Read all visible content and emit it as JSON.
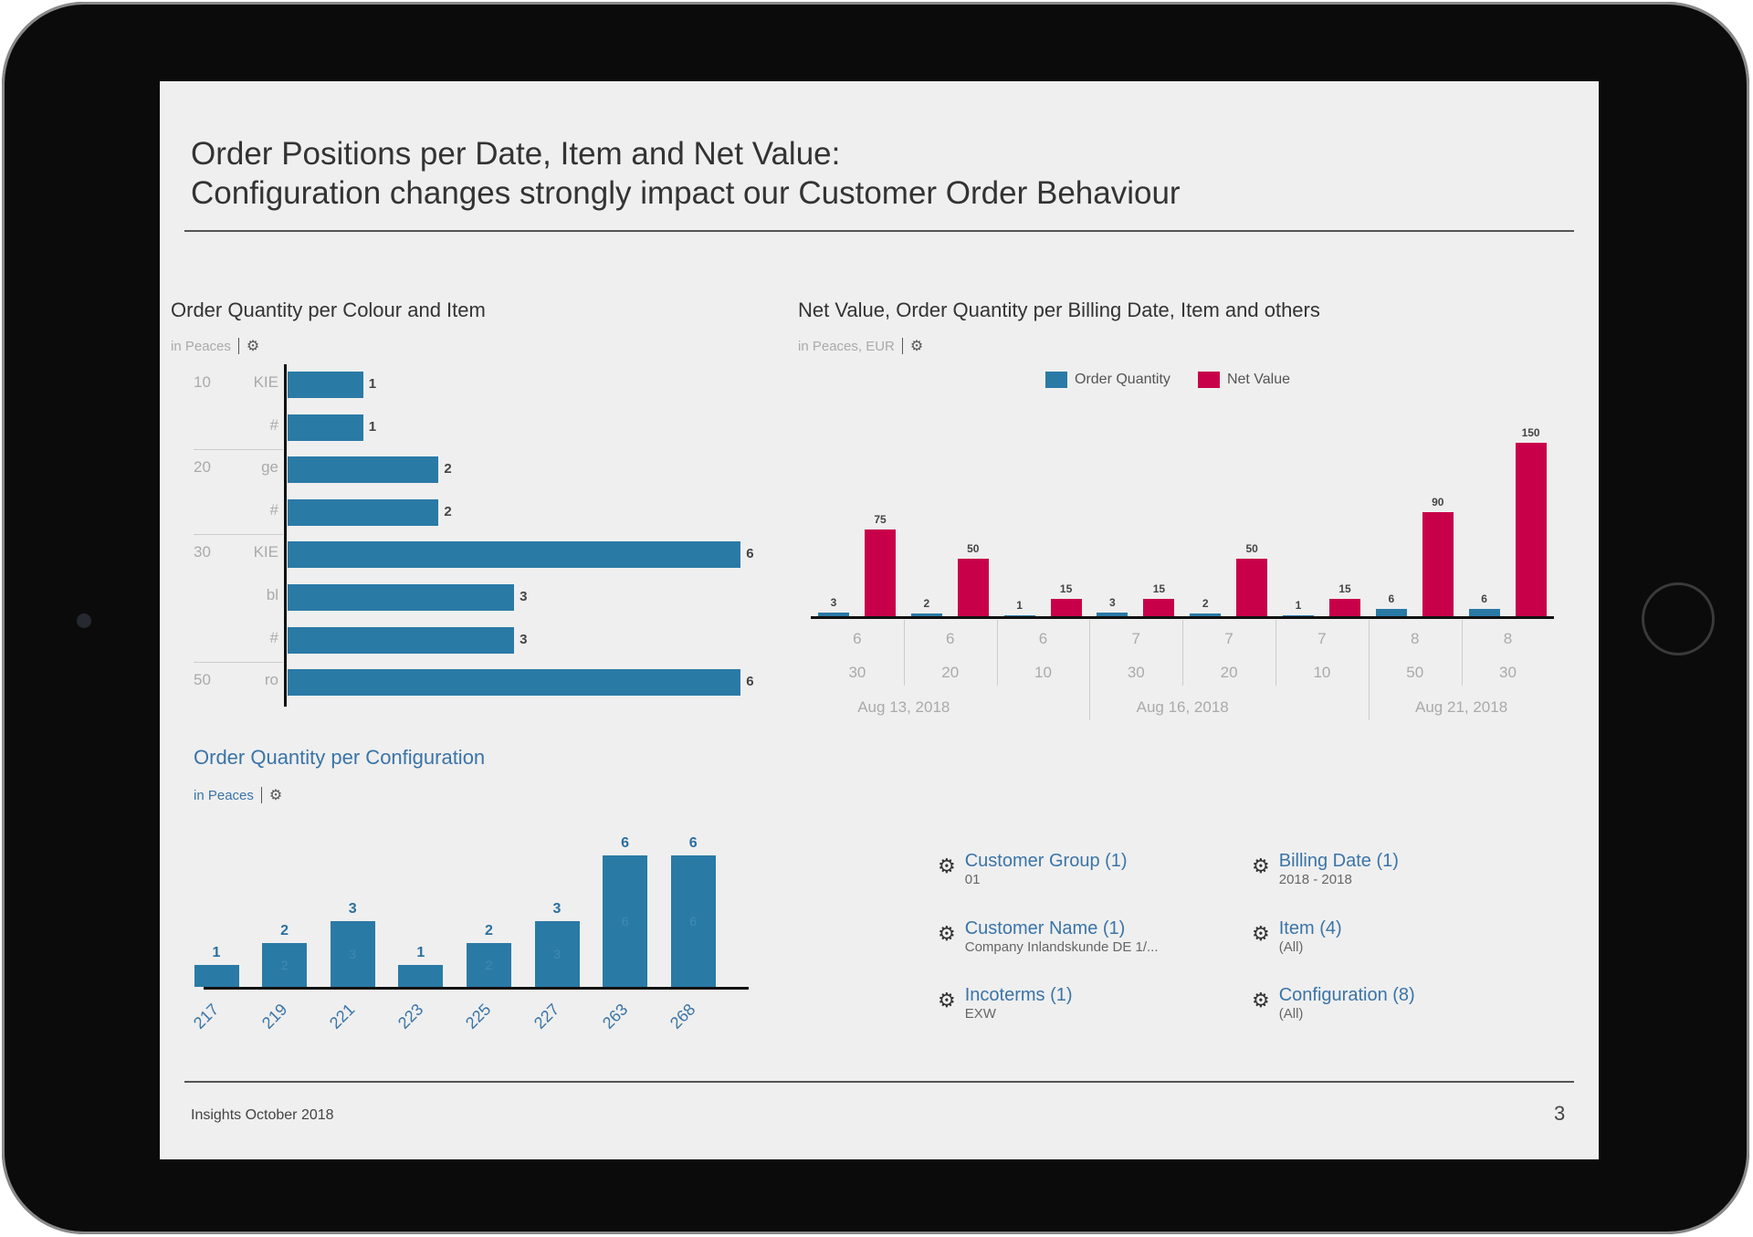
{
  "page": {
    "title_line1": "Order Positions per Date, Item and Net Value:",
    "title_line2": "Configuration changes strongly impact our Customer Order Behaviour",
    "footer": "Insights October 2018",
    "page_number": "3"
  },
  "colors": {
    "blue": "#2a7aa6",
    "red": "#c8004a",
    "link": "#3a74a8"
  },
  "chart_data": [
    {
      "type": "bar",
      "orientation": "horizontal",
      "title": "Order Quantity per Colour and Item",
      "subtitle": "in Peaces",
      "icon": "settings-gear-icon",
      "categories": [
        {
          "item": "10",
          "colour": "KIE"
        },
        {
          "item": "",
          "colour": "#"
        },
        {
          "item": "20",
          "colour": "ge"
        },
        {
          "item": "",
          "colour": "#"
        },
        {
          "item": "30",
          "colour": "KIE"
        },
        {
          "item": "",
          "colour": "bl"
        },
        {
          "item": "",
          "colour": "#"
        },
        {
          "item": "50",
          "colour": "ro"
        }
      ],
      "values": [
        1,
        1,
        2,
        2,
        6,
        3,
        3,
        6
      ]
    },
    {
      "type": "bar",
      "title": "Net Value, Order Quantity per Billing Date, Item and others",
      "subtitle": "in Peaces, EUR",
      "icon": "settings-gear-icon",
      "categories": [
        {
          "a": "6",
          "b": "30"
        },
        {
          "a": "6",
          "b": "20"
        },
        {
          "a": "6",
          "b": "10"
        },
        {
          "a": "7",
          "b": "30"
        },
        {
          "a": "7",
          "b": "20"
        },
        {
          "a": "7",
          "b": "10"
        },
        {
          "a": "8",
          "b": "50"
        },
        {
          "a": "8",
          "b": "30"
        }
      ],
      "date_groups": [
        {
          "label": "Aug 13, 2018",
          "span": 3
        },
        {
          "label": "Aug 16, 2018",
          "span": 3
        },
        {
          "label": "Aug 21, 2018",
          "span": 2
        }
      ],
      "legend": "top",
      "series": [
        {
          "name": "Order Quantity",
          "color": "#2a7aa6",
          "values": [
            3,
            2,
            1,
            3,
            2,
            1,
            6,
            6
          ]
        },
        {
          "name": "Net Value",
          "color": "#c8004a",
          "values": [
            75,
            50,
            15,
            15,
            50,
            15,
            90,
            150
          ]
        }
      ]
    },
    {
      "type": "bar",
      "title": "Order Quantity per Configuration",
      "subtitle": "in Peaces",
      "icon": "settings-gear-icon",
      "categories": [
        "217",
        "219",
        "221",
        "223",
        "225",
        "227",
        "263",
        "268"
      ],
      "values": [
        1,
        2,
        3,
        1,
        2,
        3,
        6,
        6
      ]
    }
  ],
  "filters": [
    {
      "name": "Customer Group (1)",
      "value": "01"
    },
    {
      "name": "Billing Date (1)",
      "value": "2018 - 2018"
    },
    {
      "name": "Customer Name (1)",
      "value": "Company Inlandskunde DE 1/..."
    },
    {
      "name": "Item (4)",
      "value": "(All)"
    },
    {
      "name": "Incoterms (1)",
      "value": "EXW"
    },
    {
      "name": "Configuration (8)",
      "value": "(All)"
    }
  ]
}
